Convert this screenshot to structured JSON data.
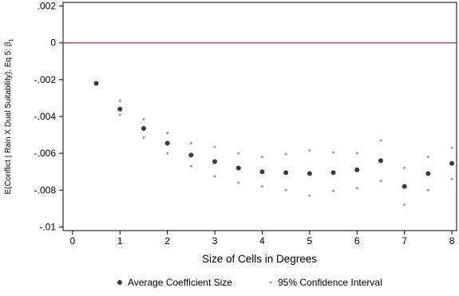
{
  "chart_data": {
    "type": "scatter",
    "title": "",
    "xlabel": "Size of Cells in Degrees",
    "ylabel": "E(Conflict | Rain X Dual Suitability), Eq 5: β",
    "ylabel_subscript": "1",
    "xlim": [
      -0.2,
      8.1
    ],
    "ylim": [
      -0.0102,
      0.0022
    ],
    "xticks": [
      0,
      1,
      2,
      3,
      4,
      5,
      6,
      7,
      8
    ],
    "xtick_labels": [
      "0",
      "1",
      "2",
      "3",
      "4",
      "5",
      "6",
      "7",
      "8"
    ],
    "yticks": [
      0.002,
      0,
      -0.002,
      -0.004,
      -0.006,
      -0.008,
      -0.01
    ],
    "ytick_labels": [
      ".002",
      "0",
      "-.002",
      "-.004",
      "-.006",
      "-.008",
      "-.01"
    ],
    "grid": false,
    "legend_position": "bottom",
    "reference_line": {
      "y": 0,
      "color": "#d62020"
    },
    "x": [
      0.5,
      1,
      1.5,
      2,
      2.5,
      3,
      3.5,
      4,
      4.5,
      5,
      5.5,
      6,
      6.5,
      7,
      7.5,
      8
    ],
    "series": [
      {
        "name": "Average Coefficient Size",
        "color": "#3b3b3b",
        "values": [
          -0.0022,
          -0.0036,
          -0.00465,
          -0.00545,
          -0.0061,
          -0.00645,
          -0.0068,
          -0.007,
          -0.00705,
          -0.0071,
          -0.00705,
          -0.0069,
          -0.0064,
          -0.0078,
          -0.0071,
          -0.00655
        ]
      },
      {
        "name": "95% Confidence Interval",
        "color": "#a3a3a3",
        "upper": [
          null,
          -0.00315,
          -0.00415,
          -0.0049,
          -0.00545,
          -0.00565,
          -0.006,
          -0.0062,
          -0.00605,
          -0.00585,
          -0.00595,
          -0.006,
          -0.0053,
          -0.0068,
          -0.0062,
          -0.0057
        ],
        "lower": [
          null,
          -0.0039,
          -0.00515,
          -0.006,
          -0.0067,
          -0.00725,
          -0.0076,
          -0.0078,
          -0.008,
          -0.0083,
          -0.00805,
          -0.0079,
          -0.0075,
          -0.0088,
          -0.008,
          -0.0074
        ]
      }
    ]
  }
}
